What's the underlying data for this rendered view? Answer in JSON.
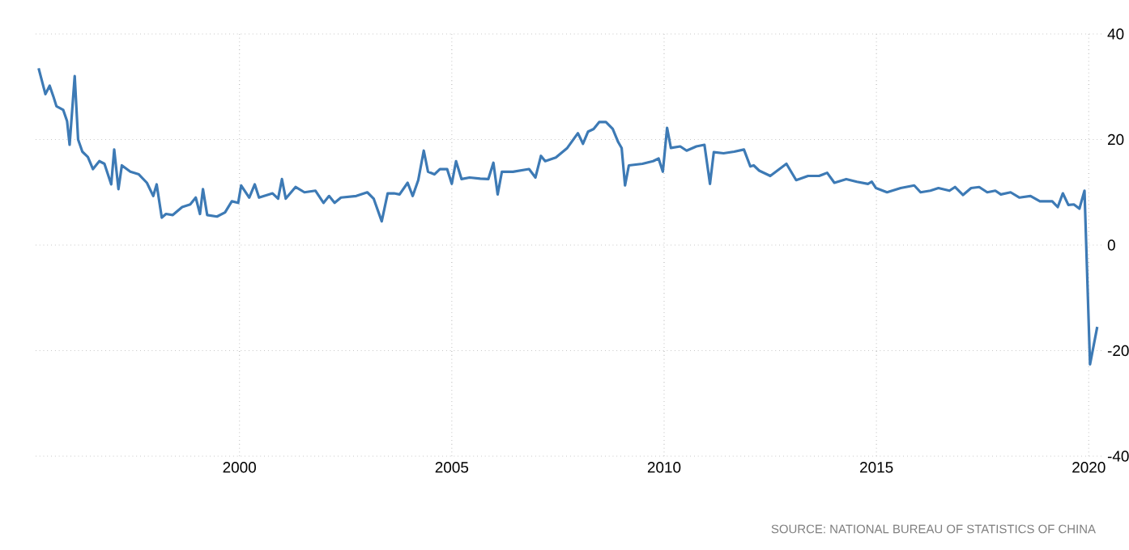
{
  "chart_data": {
    "type": "line",
    "x": [
      1995.27,
      1995.43,
      1995.53,
      1995.62,
      1995.69,
      1995.85,
      1995.94,
      1996.0,
      1996.12,
      1996.2,
      1996.3,
      1996.43,
      1996.55,
      1996.7,
      1996.82,
      1996.98,
      1997.05,
      1997.15,
      1997.23,
      1997.43,
      1997.63,
      1997.82,
      1997.97,
      1998.05,
      1998.17,
      1998.27,
      1998.43,
      1998.65,
      1998.84,
      1998.97,
      1999.07,
      1999.14,
      1999.24,
      1999.47,
      1999.66,
      1999.82,
      1999.97,
      2000.04,
      2000.23,
      2000.36,
      2000.46,
      2000.78,
      2000.91,
      2001.0,
      2001.09,
      2001.32,
      2001.53,
      2001.79,
      2001.98,
      2002.11,
      2002.24,
      2002.39,
      2002.75,
      2003.01,
      2003.16,
      2003.35,
      2003.49,
      2003.64,
      2003.77,
      2003.96,
      2004.08,
      2004.21,
      2004.34,
      2004.44,
      2004.59,
      2004.72,
      2004.89,
      2005.0,
      2005.1,
      2005.23,
      2005.42,
      2005.67,
      2005.86,
      2005.98,
      2006.08,
      2006.18,
      2006.44,
      2006.82,
      2006.97,
      2007.1,
      2007.2,
      2007.45,
      2007.72,
      2007.97,
      2008.09,
      2008.21,
      2008.34,
      2008.47,
      2008.63,
      2008.79,
      2008.92,
      2009.0,
      2009.08,
      2009.17,
      2009.49,
      2009.74,
      2009.87,
      2009.97,
      2010.07,
      2010.16,
      2010.38,
      2010.53,
      2010.76,
      2010.95,
      2011.08,
      2011.17,
      2011.4,
      2011.65,
      2011.88,
      2012.03,
      2012.11,
      2012.24,
      2012.5,
      2012.88,
      2013.11,
      2013.39,
      2013.65,
      2013.84,
      2014.01,
      2014.29,
      2014.54,
      2014.8,
      2014.89,
      2014.99,
      2015.25,
      2015.57,
      2015.89,
      2016.04,
      2016.27,
      2016.46,
      2016.72,
      2016.85,
      2017.04,
      2017.23,
      2017.42,
      2017.61,
      2017.8,
      2017.93,
      2018.16,
      2018.37,
      2018.63,
      2018.85,
      2019.14,
      2019.27,
      2019.39,
      2019.52,
      2019.65,
      2019.78,
      2019.9,
      2020.03,
      2020.2
    ],
    "series": [
      {
        "color": "#3d7ab5",
        "values": [
          33.5,
          28.6,
          30.2,
          28.1,
          26.3,
          25.6,
          23.5,
          19.0,
          32.0,
          20.0,
          17.7,
          16.7,
          14.4,
          15.9,
          15.4,
          11.5,
          18.1,
          10.6,
          15.1,
          13.9,
          13.4,
          11.8,
          9.3,
          11.5,
          5.2,
          5.9,
          5.7,
          7.2,
          7.7,
          9.0,
          5.9,
          10.6,
          5.7,
          5.4,
          6.2,
          8.3,
          8.0,
          11.3,
          9.0,
          11.5,
          9.0,
          9.8,
          8.8,
          12.5,
          8.8,
          11.0,
          10.0,
          10.3,
          8.0,
          9.3,
          8.0,
          9.0,
          9.3,
          10.0,
          8.8,
          4.5,
          9.8,
          9.8,
          9.6,
          11.8,
          9.3,
          12.3,
          17.9,
          13.9,
          13.4,
          14.4,
          14.4,
          11.6,
          15.9,
          12.5,
          12.8,
          12.6,
          12.5,
          15.6,
          9.6,
          13.9,
          13.9,
          14.4,
          12.8,
          16.9,
          15.9,
          16.6,
          18.4,
          21.2,
          19.2,
          21.5,
          22.0,
          23.3,
          23.3,
          22.0,
          19.5,
          18.4,
          11.3,
          15.1,
          15.4,
          15.9,
          16.4,
          13.9,
          22.2,
          18.4,
          18.7,
          17.9,
          18.7,
          19.0,
          11.6,
          17.6,
          17.4,
          17.7,
          18.1,
          14.9,
          15.1,
          14.1,
          13.1,
          15.4,
          12.3,
          13.1,
          13.1,
          13.7,
          11.8,
          12.5,
          12.0,
          11.6,
          12.0,
          10.8,
          10.0,
          10.8,
          11.3,
          10.0,
          10.3,
          10.8,
          10.3,
          11.0,
          9.5,
          10.8,
          11.0,
          10.0,
          10.3,
          9.6,
          10.0,
          9.0,
          9.3,
          8.3,
          8.3,
          7.2,
          9.8,
          7.6,
          7.7,
          6.9,
          10.3,
          -22.6,
          -15.5
        ]
      }
    ],
    "xlim": [
      1995.2,
      2020.3
    ],
    "ylim": [
      -40,
      40
    ],
    "xticks": [
      2000,
      2005,
      2010,
      2015,
      2020
    ],
    "yticks": [
      -40,
      -20,
      0,
      20,
      40
    ],
    "grid": true,
    "annotations": [
      "SOURCE: NATIONAL BUREAU OF STATISTICS OF CHINA"
    ]
  }
}
